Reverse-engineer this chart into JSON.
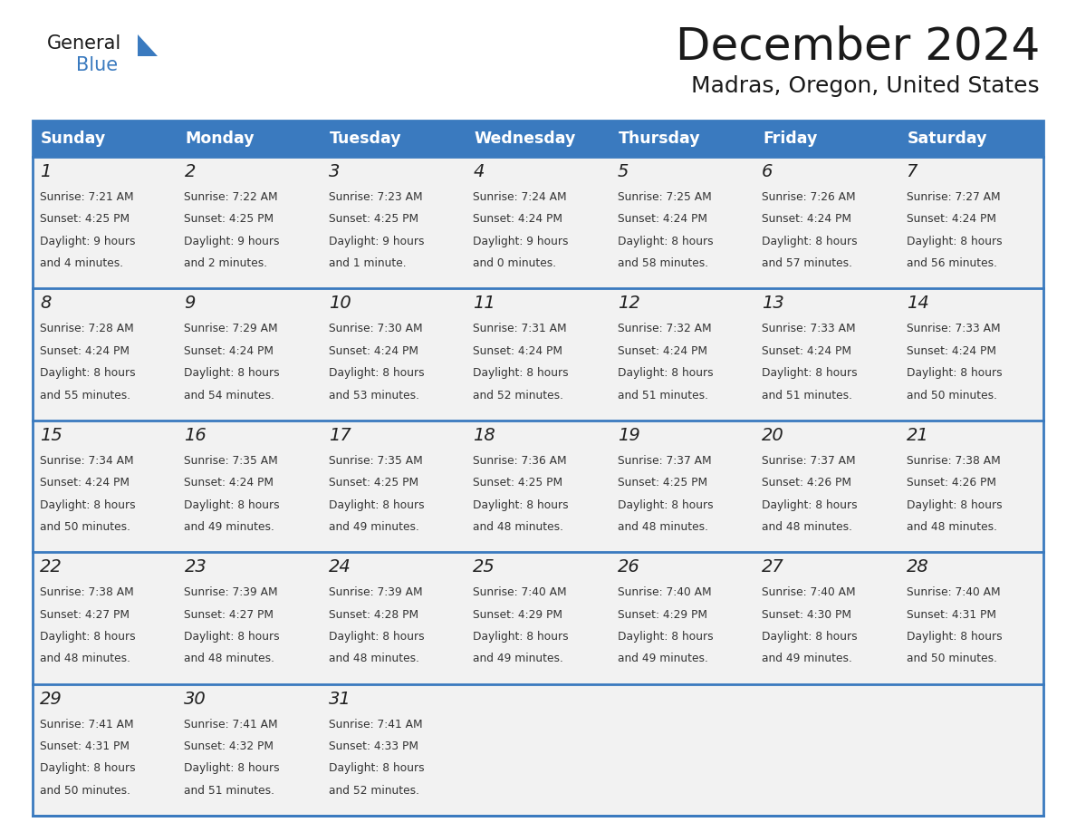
{
  "title": "December 2024",
  "subtitle": "Madras, Oregon, United States",
  "header_color": "#3a7abf",
  "header_text_color": "#ffffff",
  "cell_bg_color": "#f2f2f2",
  "text_color": "#333333",
  "line_color": "#3a7abf",
  "days_of_week": [
    "Sunday",
    "Monday",
    "Tuesday",
    "Wednesday",
    "Thursday",
    "Friday",
    "Saturday"
  ],
  "calendar_data": [
    [
      {
        "day": 1,
        "sunrise": "7:21 AM",
        "sunset": "4:25 PM",
        "daylight_line1": "Daylight: 9 hours",
        "daylight_line2": "and 4 minutes."
      },
      {
        "day": 2,
        "sunrise": "7:22 AM",
        "sunset": "4:25 PM",
        "daylight_line1": "Daylight: 9 hours",
        "daylight_line2": "and 2 minutes."
      },
      {
        "day": 3,
        "sunrise": "7:23 AM",
        "sunset": "4:25 PM",
        "daylight_line1": "Daylight: 9 hours",
        "daylight_line2": "and 1 minute."
      },
      {
        "day": 4,
        "sunrise": "7:24 AM",
        "sunset": "4:24 PM",
        "daylight_line1": "Daylight: 9 hours",
        "daylight_line2": "and 0 minutes."
      },
      {
        "day": 5,
        "sunrise": "7:25 AM",
        "sunset": "4:24 PM",
        "daylight_line1": "Daylight: 8 hours",
        "daylight_line2": "and 58 minutes."
      },
      {
        "day": 6,
        "sunrise": "7:26 AM",
        "sunset": "4:24 PM",
        "daylight_line1": "Daylight: 8 hours",
        "daylight_line2": "and 57 minutes."
      },
      {
        "day": 7,
        "sunrise": "7:27 AM",
        "sunset": "4:24 PM",
        "daylight_line1": "Daylight: 8 hours",
        "daylight_line2": "and 56 minutes."
      }
    ],
    [
      {
        "day": 8,
        "sunrise": "7:28 AM",
        "sunset": "4:24 PM",
        "daylight_line1": "Daylight: 8 hours",
        "daylight_line2": "and 55 minutes."
      },
      {
        "day": 9,
        "sunrise": "7:29 AM",
        "sunset": "4:24 PM",
        "daylight_line1": "Daylight: 8 hours",
        "daylight_line2": "and 54 minutes."
      },
      {
        "day": 10,
        "sunrise": "7:30 AM",
        "sunset": "4:24 PM",
        "daylight_line1": "Daylight: 8 hours",
        "daylight_line2": "and 53 minutes."
      },
      {
        "day": 11,
        "sunrise": "7:31 AM",
        "sunset": "4:24 PM",
        "daylight_line1": "Daylight: 8 hours",
        "daylight_line2": "and 52 minutes."
      },
      {
        "day": 12,
        "sunrise": "7:32 AM",
        "sunset": "4:24 PM",
        "daylight_line1": "Daylight: 8 hours",
        "daylight_line2": "and 51 minutes."
      },
      {
        "day": 13,
        "sunrise": "7:33 AM",
        "sunset": "4:24 PM",
        "daylight_line1": "Daylight: 8 hours",
        "daylight_line2": "and 51 minutes."
      },
      {
        "day": 14,
        "sunrise": "7:33 AM",
        "sunset": "4:24 PM",
        "daylight_line1": "Daylight: 8 hours",
        "daylight_line2": "and 50 minutes."
      }
    ],
    [
      {
        "day": 15,
        "sunrise": "7:34 AM",
        "sunset": "4:24 PM",
        "daylight_line1": "Daylight: 8 hours",
        "daylight_line2": "and 50 minutes."
      },
      {
        "day": 16,
        "sunrise": "7:35 AM",
        "sunset": "4:24 PM",
        "daylight_line1": "Daylight: 8 hours",
        "daylight_line2": "and 49 minutes."
      },
      {
        "day": 17,
        "sunrise": "7:35 AM",
        "sunset": "4:25 PM",
        "daylight_line1": "Daylight: 8 hours",
        "daylight_line2": "and 49 minutes."
      },
      {
        "day": 18,
        "sunrise": "7:36 AM",
        "sunset": "4:25 PM",
        "daylight_line1": "Daylight: 8 hours",
        "daylight_line2": "and 48 minutes."
      },
      {
        "day": 19,
        "sunrise": "7:37 AM",
        "sunset": "4:25 PM",
        "daylight_line1": "Daylight: 8 hours",
        "daylight_line2": "and 48 minutes."
      },
      {
        "day": 20,
        "sunrise": "7:37 AM",
        "sunset": "4:26 PM",
        "daylight_line1": "Daylight: 8 hours",
        "daylight_line2": "and 48 minutes."
      },
      {
        "day": 21,
        "sunrise": "7:38 AM",
        "sunset": "4:26 PM",
        "daylight_line1": "Daylight: 8 hours",
        "daylight_line2": "and 48 minutes."
      }
    ],
    [
      {
        "day": 22,
        "sunrise": "7:38 AM",
        "sunset": "4:27 PM",
        "daylight_line1": "Daylight: 8 hours",
        "daylight_line2": "and 48 minutes."
      },
      {
        "day": 23,
        "sunrise": "7:39 AM",
        "sunset": "4:27 PM",
        "daylight_line1": "Daylight: 8 hours",
        "daylight_line2": "and 48 minutes."
      },
      {
        "day": 24,
        "sunrise": "7:39 AM",
        "sunset": "4:28 PM",
        "daylight_line1": "Daylight: 8 hours",
        "daylight_line2": "and 48 minutes."
      },
      {
        "day": 25,
        "sunrise": "7:40 AM",
        "sunset": "4:29 PM",
        "daylight_line1": "Daylight: 8 hours",
        "daylight_line2": "and 49 minutes."
      },
      {
        "day": 26,
        "sunrise": "7:40 AM",
        "sunset": "4:29 PM",
        "daylight_line1": "Daylight: 8 hours",
        "daylight_line2": "and 49 minutes."
      },
      {
        "day": 27,
        "sunrise": "7:40 AM",
        "sunset": "4:30 PM",
        "daylight_line1": "Daylight: 8 hours",
        "daylight_line2": "and 49 minutes."
      },
      {
        "day": 28,
        "sunrise": "7:40 AM",
        "sunset": "4:31 PM",
        "daylight_line1": "Daylight: 8 hours",
        "daylight_line2": "and 50 minutes."
      }
    ],
    [
      {
        "day": 29,
        "sunrise": "7:41 AM",
        "sunset": "4:31 PM",
        "daylight_line1": "Daylight: 8 hours",
        "daylight_line2": "and 50 minutes."
      },
      {
        "day": 30,
        "sunrise": "7:41 AM",
        "sunset": "4:32 PM",
        "daylight_line1": "Daylight: 8 hours",
        "daylight_line2": "and 51 minutes."
      },
      {
        "day": 31,
        "sunrise": "7:41 AM",
        "sunset": "4:33 PM",
        "daylight_line1": "Daylight: 8 hours",
        "daylight_line2": "and 52 minutes."
      },
      null,
      null,
      null,
      null
    ]
  ]
}
